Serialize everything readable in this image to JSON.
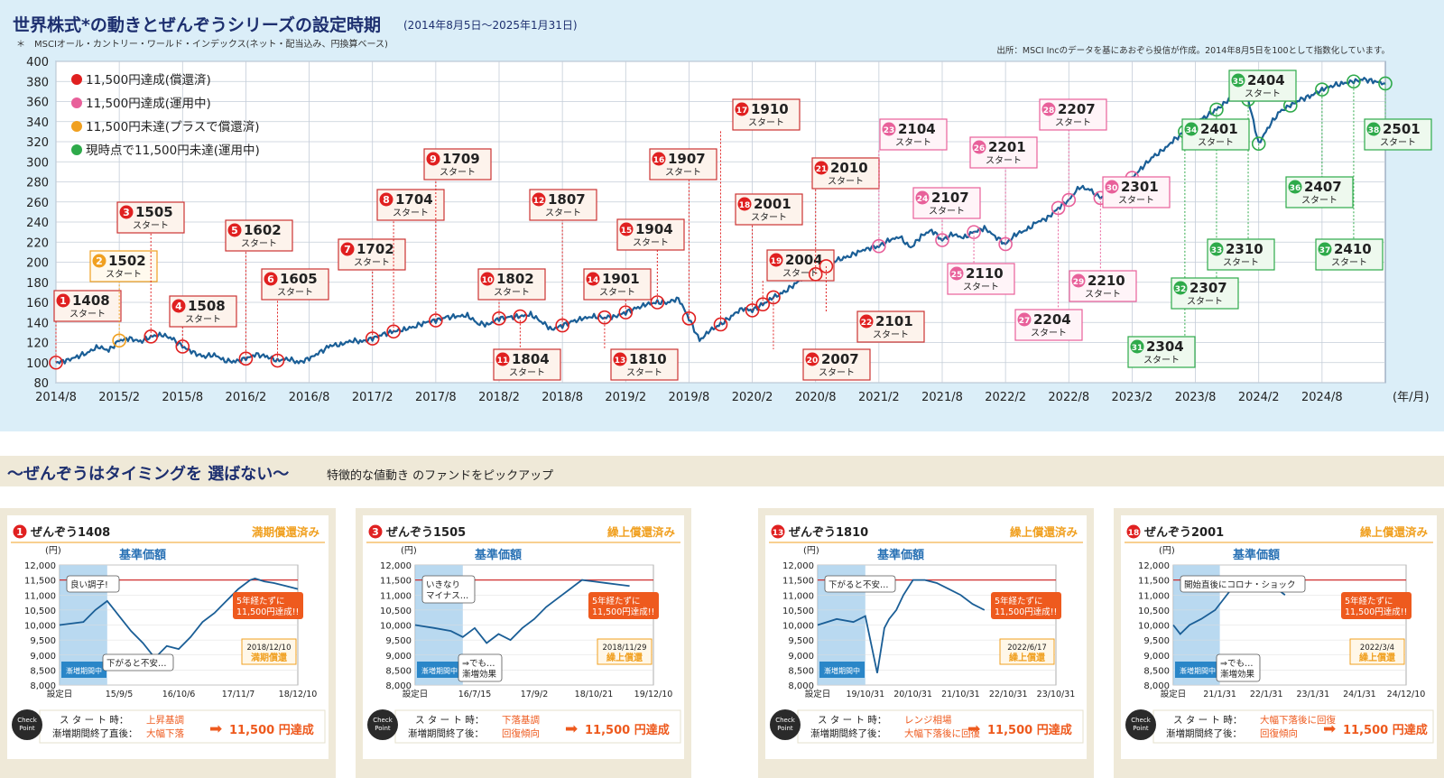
{
  "header": {
    "title": "世界株式*の動きとぜんぞうシリーズの設定時期",
    "period": "(2014年8月5日～2025年1月31日)",
    "footnote": "＊　MSCIオール・カントリー・ワールド・インデックス(ネット・配当込み、円換算ベース)",
    "source": "出所：MSCI Incのデータを基にあおぞら投信が作成。2014年8月5日を100として指数化しています。"
  },
  "colors": {
    "redeemed": "#e02020",
    "achieved_running": "#e8609a",
    "not_achieved_redeemed": "#f0a020",
    "running": "#2eaa4a",
    "line": "#1a5e96"
  },
  "chart_data": {
    "type": "line",
    "title": "世界株式*の動きとぜんぞうシリーズの設定時期",
    "xlabel": "(年/月)",
    "ylabel": "",
    "ylim": [
      80,
      400
    ],
    "yticks": [
      80,
      100,
      120,
      140,
      160,
      180,
      200,
      220,
      240,
      260,
      280,
      300,
      320,
      340,
      360,
      380,
      400
    ],
    "xticks": [
      "2014/8",
      "2015/2",
      "2015/8",
      "2016/2",
      "2016/8",
      "2017/2",
      "2017/8",
      "2018/2",
      "2018/8",
      "2019/2",
      "2019/8",
      "2020/2",
      "2020/8",
      "2021/2",
      "2021/8",
      "2022/2",
      "2022/8",
      "2023/2",
      "2023/8",
      "2024/2",
      "2024/8"
    ],
    "grid": true,
    "legend": [
      {
        "label": "11,500円達成(償還済)",
        "color": "#e02020"
      },
      {
        "label": "11,500円達成(運用中)",
        "color": "#e8609a"
      },
      {
        "label": "11,500円未達(プラスで償還済)",
        "color": "#f0a020"
      },
      {
        "label": "現時点で11,500円未達(運用中)",
        "color": "#2eaa4a"
      }
    ],
    "series": [
      {
        "x_months": [
          0,
          1,
          2,
          3,
          4,
          5,
          6,
          7,
          8,
          9,
          10,
          11,
          12,
          13,
          14,
          15,
          16,
          17,
          18,
          19,
          20,
          21,
          22,
          23,
          24,
          25,
          26,
          27,
          28,
          29,
          30,
          31,
          32,
          33,
          34,
          35,
          36,
          37,
          38,
          39,
          40,
          41,
          42,
          43,
          44,
          45,
          46,
          47,
          48,
          49,
          50,
          51,
          52,
          53,
          54,
          55,
          56,
          57,
          58,
          59,
          60,
          61,
          62,
          63,
          64,
          65,
          66,
          67,
          68,
          69,
          70,
          71,
          72,
          73,
          74,
          75,
          76,
          77,
          78,
          79,
          80,
          81,
          82,
          83,
          84,
          85,
          86,
          87,
          88,
          89,
          90,
          91,
          92,
          93,
          94,
          95,
          96,
          97,
          98,
          99,
          100,
          101,
          102,
          103,
          104,
          105,
          106,
          107,
          108,
          109,
          110,
          111,
          112,
          113,
          114,
          115,
          116,
          117,
          118,
          119,
          120,
          121,
          122,
          123,
          124,
          125,
          126
        ],
        "values": [
          100,
          102,
          106,
          110,
          116,
          112,
          122,
          124,
          121,
          126,
          128,
          124,
          116,
          110,
          106,
          108,
          102,
          101,
          104,
          108,
          106,
          102,
          104,
          100,
          104,
          110,
          117,
          118,
          122,
          121,
          124,
          128,
          131,
          133,
          136,
          140,
          142,
          145,
          146,
          147,
          139,
          138,
          144,
          145,
          146,
          148,
          141,
          133,
          137,
          141,
          144,
          146,
          145,
          146,
          150,
          154,
          158,
          160,
          160,
          164,
          144,
          122,
          132,
          138,
          146,
          154,
          152,
          158,
          165,
          170,
          178,
          186,
          188,
          196,
          202,
          205,
          210,
          214,
          216,
          222,
          225,
          214,
          226,
          232,
          222,
          228,
          224,
          230,
          234,
          226,
          218,
          228,
          232,
          240,
          244,
          254,
          262,
          275,
          272,
          264,
          268,
          276,
          284,
          295,
          305,
          312,
          322,
          330,
          340,
          345,
          352,
          360,
          372,
          362,
          318,
          336,
          350,
          356,
          362,
          366,
          372,
          376,
          378,
          380,
          382,
          380,
          378
        ]
      }
    ],
    "funds": [
      {
        "num": "1",
        "code": "1408",
        "status": "redeemed",
        "text": "スタート"
      },
      {
        "num": "2",
        "code": "1502",
        "status": "not_achieved_redeemed",
        "text": "スタート"
      },
      {
        "num": "3",
        "code": "1505",
        "status": "redeemed",
        "text": "スタート"
      },
      {
        "num": "4",
        "code": "1508",
        "status": "redeemed",
        "text": "スタート"
      },
      {
        "num": "5",
        "code": "1602",
        "status": "redeemed",
        "text": "スタート"
      },
      {
        "num": "6",
        "code": "1605",
        "status": "redeemed",
        "text": "スタート"
      },
      {
        "num": "7",
        "code": "1702",
        "status": "redeemed",
        "text": "スタート"
      },
      {
        "num": "8",
        "code": "1704",
        "status": "redeemed",
        "text": "スタート"
      },
      {
        "num": "9",
        "code": "1709",
        "status": "redeemed",
        "text": "スタート"
      },
      {
        "num": "10",
        "code": "1802",
        "status": "redeemed",
        "text": "スタート"
      },
      {
        "num": "11",
        "code": "1804",
        "status": "redeemed",
        "text": "スタート"
      },
      {
        "num": "12",
        "code": "1807",
        "status": "redeemed",
        "text": "スタート"
      },
      {
        "num": "13",
        "code": "1810",
        "status": "redeemed",
        "text": "スタート"
      },
      {
        "num": "14",
        "code": "1901",
        "status": "redeemed",
        "text": "スタート"
      },
      {
        "num": "15",
        "code": "1904",
        "status": "redeemed",
        "text": "スタート"
      },
      {
        "num": "16",
        "code": "1907",
        "status": "redeemed",
        "text": "スタート"
      },
      {
        "num": "17",
        "code": "1910",
        "status": "redeemed",
        "text": "スタート"
      },
      {
        "num": "18",
        "code": "2001",
        "status": "redeemed",
        "text": "スタート"
      },
      {
        "num": "19",
        "code": "2004",
        "status": "redeemed",
        "text": "スタート"
      },
      {
        "num": "20",
        "code": "2007",
        "status": "redeemed",
        "text": "スタート"
      },
      {
        "num": "21",
        "code": "2010",
        "status": "redeemed",
        "text": "スタート"
      },
      {
        "num": "22",
        "code": "2101",
        "status": "redeemed",
        "text": "スタート"
      },
      {
        "num": "23",
        "code": "2104",
        "status": "achieved_running",
        "text": "スタート"
      },
      {
        "num": "24",
        "code": "2107",
        "status": "achieved_running",
        "text": "スタート"
      },
      {
        "num": "25",
        "code": "2110",
        "status": "achieved_running",
        "text": "スタート"
      },
      {
        "num": "26",
        "code": "2201",
        "status": "achieved_running",
        "text": "スタート"
      },
      {
        "num": "27",
        "code": "2204",
        "status": "achieved_running",
        "text": "スタート"
      },
      {
        "num": "28",
        "code": "2207",
        "status": "achieved_running",
        "text": "スタート"
      },
      {
        "num": "29",
        "code": "2210",
        "status": "achieved_running",
        "text": "スタート"
      },
      {
        "num": "30",
        "code": "2301",
        "status": "achieved_running",
        "text": "スタート"
      },
      {
        "num": "31",
        "code": "2304",
        "status": "running",
        "text": "スタート"
      },
      {
        "num": "32",
        "code": "2307",
        "status": "running",
        "text": "スタート"
      },
      {
        "num": "33",
        "code": "2310",
        "status": "running",
        "text": "スタート"
      },
      {
        "num": "34",
        "code": "2401",
        "status": "running",
        "text": "スタート"
      },
      {
        "num": "35",
        "code": "2404",
        "status": "running",
        "text": "スタート"
      },
      {
        "num": "36",
        "code": "2407",
        "status": "running",
        "text": "スタート"
      },
      {
        "num": "37",
        "code": "2410",
        "status": "running",
        "text": "スタート"
      },
      {
        "num": "38",
        "code": "2501",
        "status": "running",
        "text": "スタート"
      }
    ]
  },
  "pickup": {
    "heading": "～ぜんぞうはタイミングを 選ばない～",
    "caption": "特徴的な値動き のファンドをピックアップ",
    "panel_ylabel": "(円)",
    "panel_title": "基準価額",
    "target_line": 11500,
    "yticks": [
      "12,000",
      "11,500",
      "11,000",
      "10,500",
      "10,000",
      "9,500",
      "9,000",
      "8,500",
      "8,000"
    ],
    "period_badge": "漸増期間中",
    "checkpoint_label": "Check Point",
    "start_label": "ス タ ー ト 時：",
    "end_label": "漸増期間終了直後：",
    "end_label2": "漸増期間終了後：",
    "result": "11,500 円達成",
    "panels": [
      {
        "num": "1",
        "name": "ぜんぞう1408",
        "status": "満期償還済み",
        "xticks": [
          "設定日",
          "15/9/5",
          "16/10/6",
          "17/11/7",
          "18/12/10"
        ],
        "notes": [
          "良い調子!",
          "下がると不安…",
          "5年経たずに\n11,500円達成!!"
        ],
        "date_note": "2018/12/10",
        "date_status": "満期償還",
        "cp_start": "上昇基調",
        "cp_end": "大幅下落",
        "cp_end_label": "漸増期間終了直後：",
        "chart_data": {
          "type": "line",
          "x": [
            0,
            0.1,
            0.15,
            0.2,
            0.25,
            0.3,
            0.35,
            0.4,
            0.45,
            0.5,
            0.55,
            0.6,
            0.65,
            0.7,
            0.75,
            0.8,
            0.82,
            0.86,
            0.9,
            0.95,
            1.0
          ],
          "values": [
            10000,
            10100,
            10500,
            10800,
            10300,
            9800,
            9400,
            8900,
            9300,
            9200,
            9600,
            10100,
            10400,
            10800,
            11200,
            11500,
            11550,
            11450,
            11400,
            11300,
            11200
          ]
        }
      },
      {
        "num": "3",
        "name": "ぜんぞう1505",
        "status": "繰上償還済み",
        "xticks": [
          "設定日",
          "16/7/15",
          "17/9/2",
          "18/10/21",
          "19/12/10"
        ],
        "notes": [
          "いきなり\nマイナス…",
          "⇒でも…\n漸増効果",
          "5年経たずに\n11,500円達成!!"
        ],
        "date_note": "2018/11/29",
        "date_status": "繰上償還",
        "cp_start": "下落基調",
        "cp_end": "回復傾向",
        "cp_end_label": "漸増期間終了後：",
        "chart_data": {
          "type": "line",
          "x": [
            0,
            0.08,
            0.15,
            0.2,
            0.25,
            0.3,
            0.35,
            0.4,
            0.45,
            0.5,
            0.55,
            0.6,
            0.65,
            0.7,
            0.75,
            0.8,
            0.85,
            0.9
          ],
          "values": [
            10000,
            9900,
            9800,
            9600,
            9900,
            9400,
            9700,
            9500,
            9900,
            10200,
            10600,
            10900,
            11200,
            11500,
            11450,
            11400,
            11350,
            11300
          ]
        }
      },
      {
        "num": "13",
        "name": "ぜんぞう1810",
        "status": "繰上償還済み",
        "xticks": [
          "設定日",
          "19/10/31",
          "20/10/31",
          "21/10/31",
          "22/10/31",
          "23/10/31"
        ],
        "notes": [
          "下がると不安…",
          "5年経たずに\n11,500円達成!!"
        ],
        "date_note": "2022/6/17",
        "date_status": "繰上償還",
        "cp_start": "レンジ相場",
        "cp_end": "大幅下落後に回復",
        "cp_end_label": "漸増期間終了後：",
        "chart_data": {
          "type": "line",
          "x": [
            0,
            0.08,
            0.15,
            0.2,
            0.25,
            0.28,
            0.3,
            0.33,
            0.36,
            0.4,
            0.45,
            0.5,
            0.55,
            0.6,
            0.65,
            0.7
          ],
          "values": [
            10000,
            10200,
            10100,
            10300,
            8400,
            9900,
            10200,
            10500,
            11000,
            11500,
            11500,
            11400,
            11200,
            11000,
            10700,
            10500
          ]
        }
      },
      {
        "num": "18",
        "name": "ぜんぞう2001",
        "status": "繰上償還済み",
        "xticks": [
          "設定日",
          "21/1/31",
          "22/1/31",
          "23/1/31",
          "24/1/31",
          "24/12/10"
        ],
        "notes": [
          "開始直後にコロナ・ショック",
          "⇒でも…\n漸増効果",
          "5年経たずに\n11,500円達成!!"
        ],
        "date_note": "2022/3/4",
        "date_status": "繰上償還",
        "cp_start": "大幅下落後に回復",
        "cp_end": "回復傾向",
        "cp_end_label": "漸増期間終了後：",
        "chart_data": {
          "type": "line",
          "x": [
            0,
            0.03,
            0.07,
            0.12,
            0.18,
            0.23,
            0.28,
            0.33,
            0.38,
            0.43,
            0.48
          ],
          "values": [
            10000,
            9700,
            10000,
            10200,
            10500,
            11000,
            11500,
            11550,
            11500,
            11300,
            11000
          ]
        }
      }
    ]
  }
}
